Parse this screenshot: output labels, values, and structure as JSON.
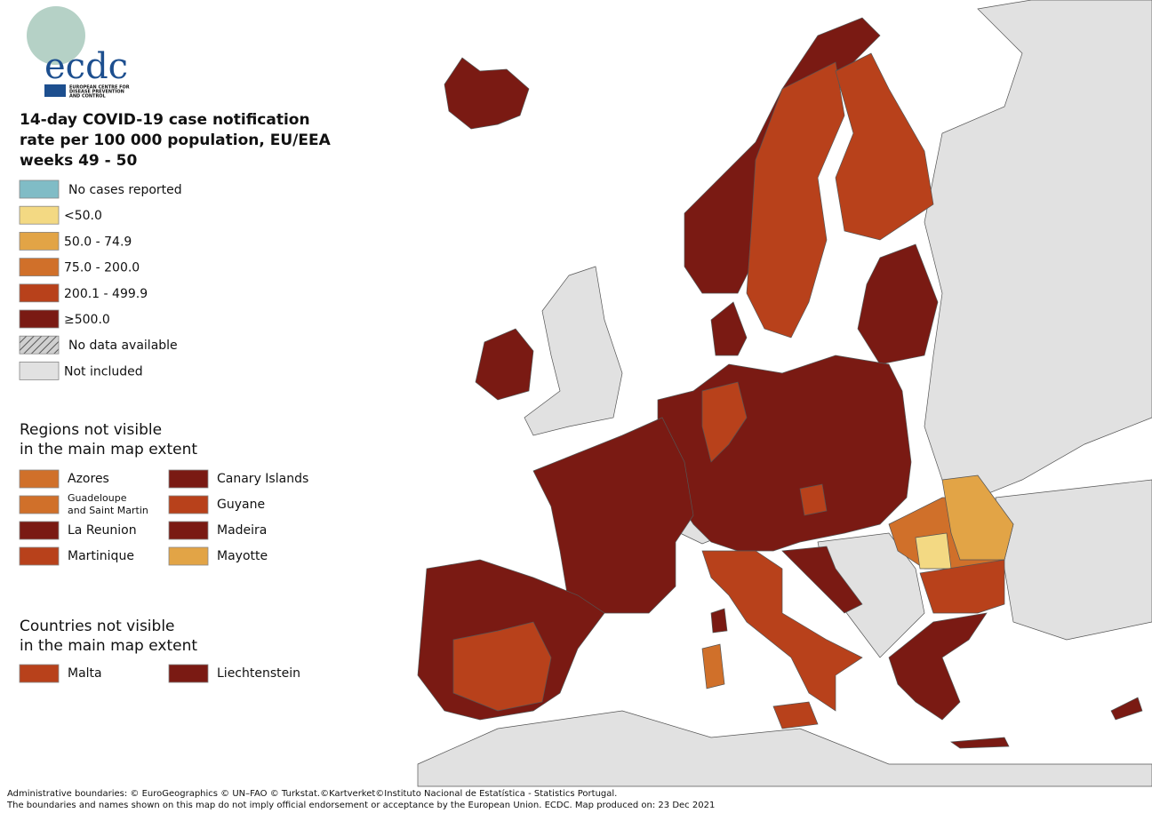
{
  "logo": {
    "text": "ecdc",
    "org": [
      "EUROPEAN CENTRE FOR",
      "DISEASE PREVENTION",
      "AND CONTROL"
    ]
  },
  "title": [
    "14-day COVID-19 case notification",
    "rate per 100 000 population, EU/EEA",
    "weeks 49 - 50"
  ],
  "legend": [
    {
      "label": "No cases reported",
      "color": "#80bcc6"
    },
    {
      "label": "<50.0",
      "color": "#f3d983"
    },
    {
      "label": "50.0 - 74.9",
      "color": "#e2a446"
    },
    {
      "label": "75.0 - 200.0",
      "color": "#d0702a"
    },
    {
      "label": "200.1 - 499.9",
      "color": "#b8411b"
    },
    {
      "label": "≥500.0",
      "color": "#7a1a13"
    },
    {
      "label": "No data available",
      "color": "#b0b0b0",
      "pattern": "hatch"
    },
    {
      "label": "Not included",
      "color": "#e1e1e1"
    }
  ],
  "regions": {
    "title": [
      "Regions not visible",
      "in the main map extent"
    ],
    "items": [
      {
        "label": [
          "Azores"
        ],
        "color": "#d0702a"
      },
      {
        "label": [
          "Canary Islands"
        ],
        "color": "#7a1a13"
      },
      {
        "label": [
          "Guadeloupe",
          "and Saint Martin"
        ],
        "color": "#d0702a"
      },
      {
        "label": [
          "Guyane"
        ],
        "color": "#b8411b"
      },
      {
        "label": [
          "La Reunion"
        ],
        "color": "#7a1a13"
      },
      {
        "label": [
          "Madeira"
        ],
        "color": "#7a1a13"
      },
      {
        "label": [
          "Martinique"
        ],
        "color": "#b8411b"
      },
      {
        "label": [
          "Mayotte"
        ],
        "color": "#e2a446"
      }
    ]
  },
  "countries": {
    "title": [
      "Countries not visible",
      "in the main map extent"
    ],
    "items": [
      {
        "label": [
          "Malta"
        ],
        "color": "#b8411b"
      },
      {
        "label": [
          "Liechtenstein"
        ],
        "color": "#7a1a13"
      }
    ]
  },
  "footer": [
    "Administrative boundaries: © EuroGeographics © UN–FAO © Turkstat.©Kartverket©Instituto Nacional de Estatística - Statistics Portugal.",
    "The boundaries and names shown on this map do not imply official endorsement or acceptance by the European Union. ECDC. Map produced on: 23 Dec 2021"
  ]
}
